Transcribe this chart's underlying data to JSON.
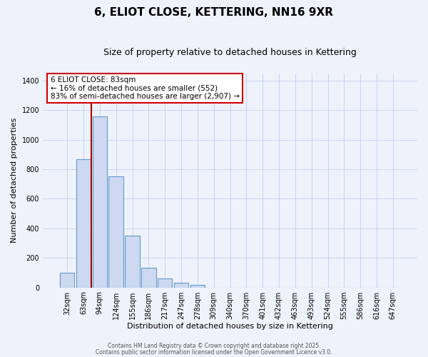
{
  "title": "6, ELIOT CLOSE, KETTERING, NN16 9XR",
  "subtitle": "Size of property relative to detached houses in Kettering",
  "xlabel": "Distribution of detached houses by size in Kettering",
  "ylabel": "Number of detached properties",
  "bar_labels": [
    "32sqm",
    "63sqm",
    "94sqm",
    "124sqm",
    "155sqm",
    "186sqm",
    "217sqm",
    "247sqm",
    "278sqm",
    "309sqm",
    "340sqm",
    "370sqm",
    "401sqm",
    "432sqm",
    "463sqm",
    "493sqm",
    "524sqm",
    "555sqm",
    "586sqm",
    "616sqm",
    "647sqm"
  ],
  "bar_values": [
    100,
    870,
    1160,
    750,
    350,
    135,
    60,
    30,
    15,
    0,
    0,
    0,
    0,
    0,
    0,
    0,
    0,
    0,
    0,
    0,
    0
  ],
  "bar_color": "#ccd9f0",
  "bar_edgecolor": "#6699cc",
  "background_color": "#eef2fb",
  "ylim": [
    0,
    1450
  ],
  "yticks": [
    0,
    200,
    400,
    600,
    800,
    1000,
    1200,
    1400
  ],
  "vline_color": "#aa0000",
  "annotation_box_text": "6 ELIOT CLOSE: 83sqm\n← 16% of detached houses are smaller (552)\n83% of semi-detached houses are larger (2,907) →",
  "footer1": "Contains HM Land Registry data © Crown copyright and database right 2025.",
  "footer2": "Contains public sector information licensed under the Open Government Licence v3.0.",
  "title_fontsize": 11,
  "subtitle_fontsize": 9,
  "tick_fontsize": 7,
  "axis_label_fontsize": 8,
  "grid_color": "#c8cfe8"
}
